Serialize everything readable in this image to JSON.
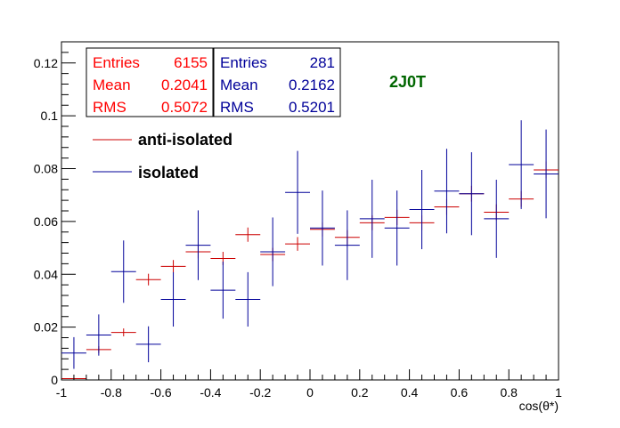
{
  "chart_data": {
    "type": "scatter",
    "xlabel": "cos(θ*)",
    "ylabel": "",
    "xlim": [
      -1,
      1
    ],
    "ylim": [
      0,
      0.128
    ],
    "x_ticks": [
      -1,
      -0.8,
      -0.6,
      -0.4,
      -0.2,
      0,
      0.2,
      0.4,
      0.6,
      0.8,
      1
    ],
    "x_tick_labels": [
      "-1",
      "-0.8",
      "-0.6",
      "-0.4",
      "-0.2",
      "0",
      "0.2",
      "0.4",
      "0.6",
      "0.8",
      "1"
    ],
    "y_ticks": [
      0,
      0.02,
      0.04,
      0.06,
      0.08,
      0.1,
      0.12
    ],
    "y_tick_labels": [
      "0",
      "0.02",
      "0.04",
      "0.06",
      "0.08",
      "0.1",
      "0.12"
    ],
    "grid": false,
    "annotation": {
      "text": "2J0T",
      "color": "#006600"
    },
    "stat_boxes": [
      {
        "series": "anti-isolated",
        "color": "#ff0000",
        "rows": [
          {
            "label": "Entries",
            "value": "6155"
          },
          {
            "label": "Mean",
            "value": "0.2041"
          },
          {
            "label": "RMS",
            "value": "0.5072"
          }
        ]
      },
      {
        "series": "isolated",
        "color": "#000099",
        "rows": [
          {
            "label": "Entries",
            "value": "281"
          },
          {
            "label": "Mean",
            "value": "0.2162"
          },
          {
            "label": "RMS",
            "value": "0.5201"
          }
        ]
      }
    ],
    "series": [
      {
        "name": "anti-isolated",
        "color": "#cc0000",
        "x": [
          -0.95,
          -0.85,
          -0.75,
          -0.65,
          -0.55,
          -0.45,
          -0.35,
          -0.25,
          -0.15,
          -0.05,
          0.05,
          0.15,
          0.25,
          0.35,
          0.45,
          0.55,
          0.65,
          0.75,
          0.85,
          0.95
        ],
        "y": [
          0.0005,
          0.0115,
          0.018,
          0.038,
          0.043,
          0.0485,
          0.046,
          0.055,
          0.0475,
          0.0515,
          0.057,
          0.054,
          0.0595,
          0.0615,
          0.0595,
          0.0655,
          0.0705,
          0.0635,
          0.0685,
          0.0795
        ],
        "y_err": [
          0.0003,
          0.0013,
          0.0015,
          0.0022,
          0.0024,
          0.0025,
          0.0025,
          0.0027,
          0.0025,
          0.0026,
          0.0027,
          0.0027,
          0.0028,
          0.0029,
          0.0028,
          0.003,
          0.003,
          0.003,
          0.003,
          0.0032
        ]
      },
      {
        "name": "isolated",
        "color": "#000099",
        "x": [
          -0.95,
          -0.85,
          -0.75,
          -0.65,
          -0.55,
          -0.45,
          -0.35,
          -0.25,
          -0.15,
          -0.05,
          0.05,
          0.15,
          0.25,
          0.35,
          0.45,
          0.55,
          0.65,
          0.75,
          0.85,
          0.95
        ],
        "y": [
          0.0102,
          0.017,
          0.041,
          0.0135,
          0.0305,
          0.051,
          0.034,
          0.0305,
          0.0485,
          0.071,
          0.0575,
          0.051,
          0.061,
          0.0575,
          0.0645,
          0.0715,
          0.0705,
          0.061,
          0.0815,
          0.078
        ],
        "y_err": [
          0.006,
          0.0078,
          0.0118,
          0.0068,
          0.0103,
          0.0132,
          0.0108,
          0.0103,
          0.013,
          0.0157,
          0.0142,
          0.0132,
          0.0148,
          0.0142,
          0.015,
          0.016,
          0.0157,
          0.0148,
          0.0168,
          0.0168
        ]
      }
    ]
  }
}
